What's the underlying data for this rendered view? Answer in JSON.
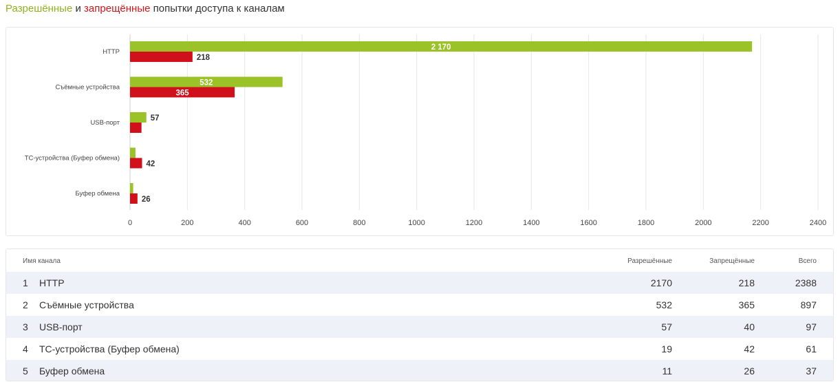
{
  "header": {
    "allowed_word": "Разрешённые",
    "and_word": "и",
    "denied_word": "запрещённые",
    "rest": "попытки доступа к каналам"
  },
  "colors": {
    "allowed": "#9bc227",
    "denied": "#d0101a",
    "grid": "#e6e6e6",
    "row_alt": "#eef1f8"
  },
  "chart_data": {
    "type": "bar",
    "orientation": "horizontal",
    "categories": [
      "HTTP",
      "Съёмные устройства",
      "USB-порт",
      "ТС-устройства (Буфер обмена)",
      "Буфер обмена"
    ],
    "series": [
      {
        "values": [
          2170,
          532,
          57,
          19,
          11
        ]
      },
      {
        "values": [
          218,
          365,
          40,
          42,
          26
        ]
      }
    ],
    "data_labels": [
      {
        "allowed": "2 170",
        "denied": "218"
      },
      {
        "allowed": "532",
        "denied": "365"
      },
      {
        "allowed": "57",
        "denied": ""
      },
      {
        "allowed": "",
        "denied": "42"
      },
      {
        "allowed": "",
        "denied": "26"
      }
    ],
    "xticks": [
      "0",
      "200",
      "400",
      "600",
      "800",
      "1000",
      "1200",
      "1400",
      "1600",
      "1800",
      "2000",
      "2200",
      "2400"
    ],
    "xlim": [
      0,
      2400
    ],
    "grid": true
  },
  "table": {
    "columns": {
      "name": "Имя канала",
      "allowed": "Разрешённые",
      "denied": "Запрещённые",
      "total": "Всего"
    },
    "rows": [
      {
        "idx": "1",
        "name": "HTTP",
        "allowed": "2170",
        "denied": "218",
        "total": "2388"
      },
      {
        "idx": "2",
        "name": "Съёмные устройства",
        "allowed": "532",
        "denied": "365",
        "total": "897"
      },
      {
        "idx": "3",
        "name": "USB-порт",
        "allowed": "57",
        "denied": "40",
        "total": "97"
      },
      {
        "idx": "4",
        "name": "ТС-устройства (Буфер обмена)",
        "allowed": "19",
        "denied": "42",
        "total": "61"
      },
      {
        "idx": "5",
        "name": "Буфер обмена",
        "allowed": "11",
        "denied": "26",
        "total": "37"
      }
    ]
  }
}
